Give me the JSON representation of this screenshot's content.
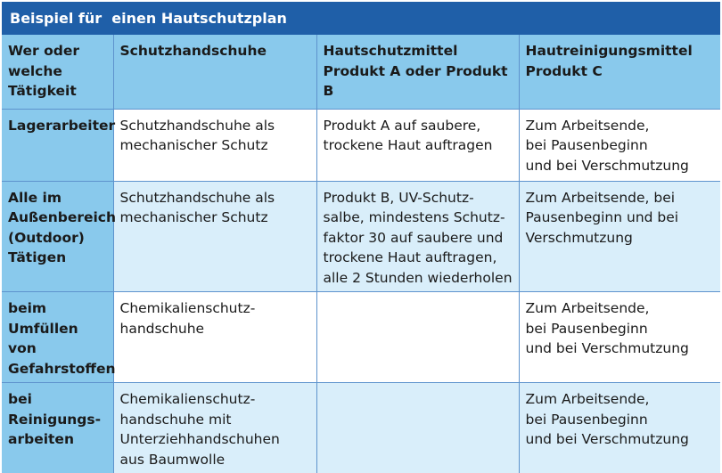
{
  "title": "Beispiel für  einen Hautschutzplan",
  "colors": {
    "title_bar": "#1f5fa8",
    "header_bg": "#89c9ec",
    "alt_row_bg": "#d9eefa",
    "grid_line": "#5e93cd"
  },
  "table": {
    "headers": [
      "Wer oder\nwelche\nTätigkeit",
      "Schutzhandschuhe",
      "Hautschutzmittel\nProdukt A oder Produkt B",
      "Hautreinigungsmittel\nProdukt C"
    ],
    "rows": [
      {
        "who": "Lagerarbeiter",
        "gloves": "Schutzhandschuhe als\nmechanischer Schutz",
        "protection": "Produkt A auf saubere,\ntrockene Haut auftragen",
        "cleaning": "Zum Arbeitsende,\nbei Pausenbeginn\nund bei Verschmutzung"
      },
      {
        "who": "Alle im\nAußenbereich\n(Outdoor)\nTätigen",
        "gloves": "Schutzhandschuhe als\nmechanischer Schutz",
        "protection": "Produkt B, UV-Schutz-\nsalbe, mindestens Schutz-\nfaktor 30 auf saubere und\ntrockene Haut auftragen,\nalle 2 Stunden wiederholen",
        "cleaning": "Zum Arbeitsende, bei\nPausenbeginn und bei\nVerschmutzung"
      },
      {
        "who": "beim\nUmfüllen von\nGefahrstoffen",
        "gloves": "Chemikalienschutz-\nhandschuhe",
        "protection": "",
        "cleaning": "Zum Arbeitsende,\nbei Pausenbeginn\nund bei Verschmutzung"
      },
      {
        "who": "bei\nReinigungs-\narbeiten",
        "gloves": "Chemikalienschutz-\nhandschuhe mit\nUnterziehhandschuhen\naus Baumwolle",
        "protection": "",
        "cleaning": "Zum Arbeitsende,\nbei Pausenbeginn\nund bei Verschmutzung"
      }
    ]
  }
}
